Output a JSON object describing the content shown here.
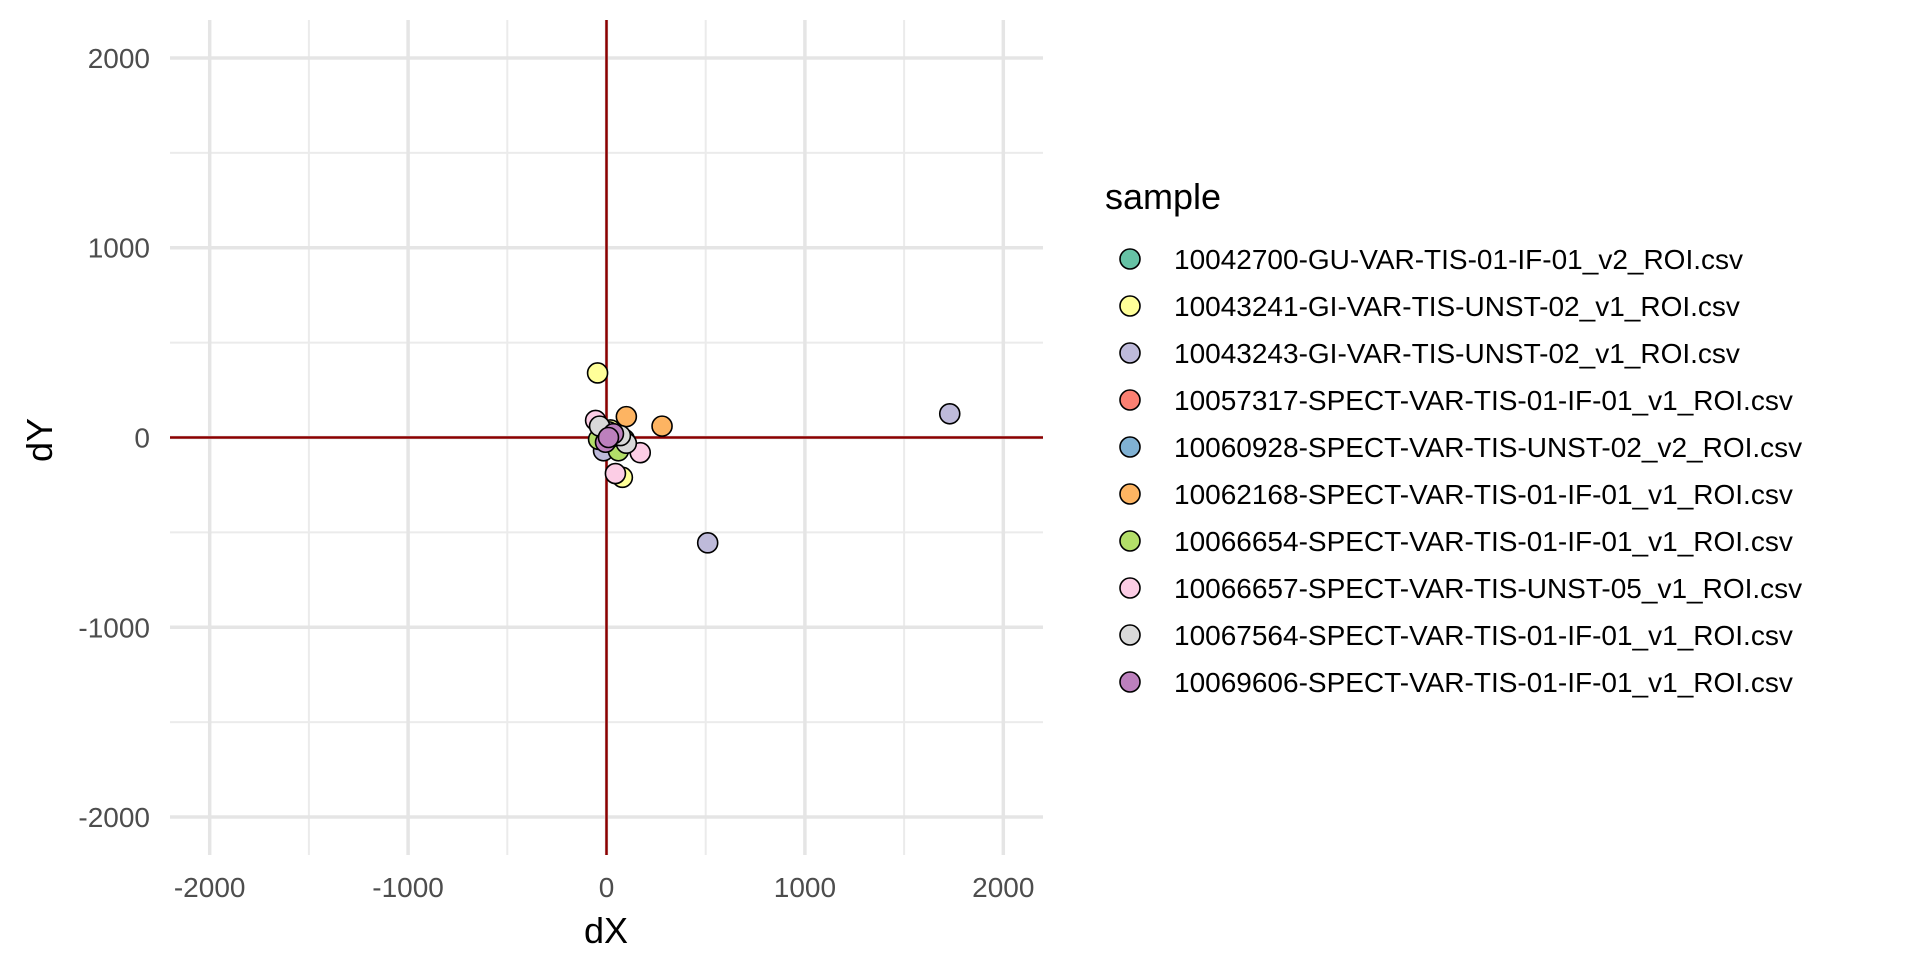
{
  "chart_data": {
    "type": "scatter",
    "xlabel": "dX",
    "ylabel": "dY",
    "xlim": [
      -2200,
      2200
    ],
    "ylim": [
      -2200,
      2200
    ],
    "x_ticks": [
      -2000,
      -1000,
      0,
      1000,
      2000
    ],
    "y_ticks": [
      -2000,
      -1000,
      0,
      1000,
      2000
    ],
    "x_tick_labels": [
      "-2000",
      "-1000",
      "0",
      "1000",
      "2000"
    ],
    "y_tick_labels": [
      "-2000",
      "-1000",
      "0",
      "1000",
      "2000"
    ],
    "grid": true,
    "reference_lines": {
      "x": 0,
      "y": 0,
      "color": "#8b0000"
    },
    "legend": {
      "title": "sample",
      "position": "right"
    },
    "series": [
      {
        "name": "10042700-GU-VAR-TIS-01-IF-01_v2_ROI.csv",
        "color": "#66c2a5",
        "points": [
          [
            -10,
            20
          ],
          [
            15,
            -5
          ]
        ]
      },
      {
        "name": "10043241-GI-VAR-TIS-UNST-02_v1_ROI.csv",
        "color": "#ffff99",
        "points": [
          [
            -45,
            340
          ],
          [
            80,
            -210
          ],
          [
            20,
            40
          ]
        ]
      },
      {
        "name": "10043243-GI-VAR-TIS-UNST-02_v1_ROI.csv",
        "color": "#bebada",
        "points": [
          [
            1730,
            125
          ],
          [
            510,
            -555
          ],
          [
            -15,
            -70
          ],
          [
            40,
            10
          ]
        ]
      },
      {
        "name": "10057317-SPECT-VAR-TIS-01-IF-01_v1_ROI.csv",
        "color": "#fb8072",
        "points": [
          [
            20,
            10
          ],
          [
            -5,
            -10
          ]
        ]
      },
      {
        "name": "10060928-SPECT-VAR-TIS-UNST-02_v2_ROI.csv",
        "color": "#80b1d3",
        "points": [
          [
            30,
            20
          ]
        ]
      },
      {
        "name": "10062168-SPECT-VAR-TIS-01-IF-01_v1_ROI.csv",
        "color": "#fdb462",
        "points": [
          [
            280,
            60
          ],
          [
            100,
            110
          ]
        ]
      },
      {
        "name": "10066654-SPECT-VAR-TIS-01-IF-01_v1_ROI.csv",
        "color": "#b3de69",
        "points": [
          [
            60,
            -70
          ],
          [
            -40,
            -10
          ],
          [
            90,
            -10
          ]
        ]
      },
      {
        "name": "10066657-SPECT-VAR-TIS-UNST-05_v1_ROI.csv",
        "color": "#fccde5",
        "points": [
          [
            170,
            -80
          ],
          [
            45,
            -190
          ],
          [
            -55,
            90
          ],
          [
            10,
            30
          ]
        ]
      },
      {
        "name": "10067564-SPECT-VAR-TIS-01-IF-01_v1_ROI.csv",
        "color": "#d9d9d9",
        "points": [
          [
            -35,
            60
          ],
          [
            100,
            -30
          ],
          [
            30,
            5
          ],
          [
            70,
            10
          ]
        ]
      },
      {
        "name": "10069606-SPECT-VAR-TIS-01-IF-01_v1_ROI.csv",
        "color": "#bc80bd",
        "points": [
          [
            -5,
            -25
          ],
          [
            35,
            20
          ],
          [
            10,
            0
          ]
        ]
      }
    ]
  }
}
